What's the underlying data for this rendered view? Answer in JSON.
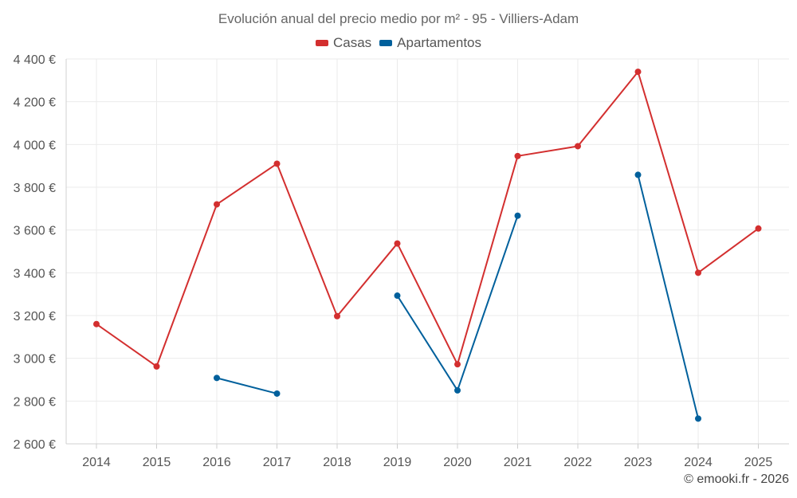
{
  "chart_data": {
    "type": "line",
    "title": "Evolución anual del precio medio por m² - 95 - Villiers-Adam",
    "xlabel": "",
    "ylabel": "",
    "categories": [
      "2014",
      "2015",
      "2016",
      "2017",
      "2018",
      "2019",
      "2020",
      "2021",
      "2022",
      "2023",
      "2024",
      "2025"
    ],
    "ylim": [
      2600,
      4400
    ],
    "yticks": [
      2600,
      2800,
      3000,
      3200,
      3400,
      3600,
      3800,
      4000,
      4200,
      4400
    ],
    "ytick_labels": [
      "2 600 €",
      "2 800 €",
      "3 000 €",
      "3 200 €",
      "3 400 €",
      "3 600 €",
      "3 800 €",
      "4 000 €",
      "4 200 €",
      "4 400 €"
    ],
    "grid": true,
    "legend_position": "top-center",
    "series": [
      {
        "name": "Casas",
        "color": "#d32f2f",
        "values": [
          3160,
          2962,
          3720,
          3910,
          3197,
          3537,
          2972,
          3946,
          3992,
          4340,
          3400,
          3607
        ]
      },
      {
        "name": "Apartamentos",
        "color": "#00609c",
        "values": [
          null,
          null,
          2908,
          2835,
          null,
          3293,
          2850,
          3667,
          null,
          3858,
          2718,
          null
        ]
      }
    ]
  },
  "footer": {
    "copyright": "© emooki.fr - 2026"
  }
}
